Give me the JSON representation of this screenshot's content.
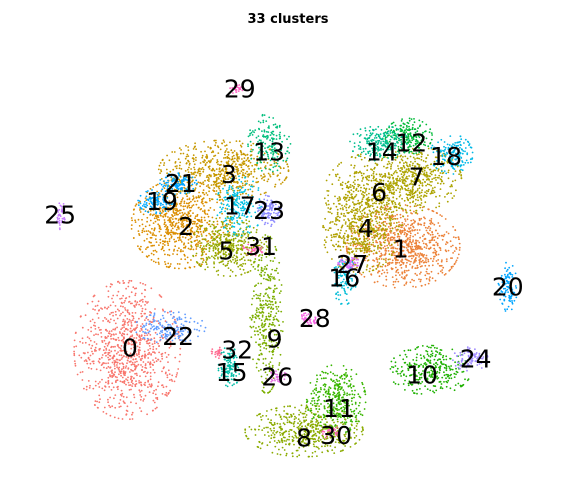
{
  "chart_data": {
    "type": "scatter",
    "title": "33 clusters",
    "xlabel": "",
    "ylabel": "",
    "grid": false,
    "legend": "none",
    "xlim": [
      0,
      100
    ],
    "ylim": [
      0,
      100
    ],
    "palette": {
      "0": "#F8766D",
      "1": "#EC8239",
      "2": "#DB8E00",
      "3": "#C79800",
      "4": "#B0A100",
      "5": "#96A900",
      "6": "#AEA200",
      "7": "#ADA400",
      "8": "#8BAB00",
      "9": "#7CAE00",
      "10": "#1EB100",
      "11": "#39B600",
      "12": "#00BA38",
      "13": "#00BF7D",
      "14": "#00BF8F",
      "15": "#00BFA8",
      "16": "#00BCD6",
      "17": "#00C1E2",
      "18": "#00B8E7",
      "19": "#00A9FF",
      "20": "#00A5FF",
      "21": "#00A5FF",
      "22": "#619CFF",
      "23": "#8E8BFF",
      "24": "#9E88FF",
      "25": "#C77CFF",
      "26": "#E26FE0",
      "27": "#D874FD",
      "28": "#F564E3",
      "29": "#FF61C3",
      "30": "#FF62BC",
      "31": "#FF63B6",
      "32": "#FF6C91"
    },
    "clusters": [
      {
        "id": "0",
        "label": "0",
        "x": 20.0,
        "y": 70.0,
        "sx": 4.5,
        "sy": 7.0,
        "n": 900
      },
      {
        "id": "1",
        "label": "1",
        "x": 71.5,
        "y": 47.0,
        "sx": 4.8,
        "sy": 4.2,
        "n": 800
      },
      {
        "id": "2",
        "label": "2",
        "x": 30.0,
        "y": 42.0,
        "sx": 4.2,
        "sy": 4.5,
        "n": 700
      },
      {
        "id": "3",
        "label": "3",
        "x": 38.0,
        "y": 30.0,
        "sx": 5.5,
        "sy": 3.0,
        "n": 600
      },
      {
        "id": "4",
        "label": "4",
        "x": 63.5,
        "y": 44.0,
        "sx": 3.2,
        "sy": 4.0,
        "n": 450
      },
      {
        "id": "5",
        "label": "5",
        "x": 39.0,
        "y": 47.0,
        "sx": 3.2,
        "sy": 3.0,
        "n": 400
      },
      {
        "id": "6",
        "label": "6",
        "x": 66.0,
        "y": 35.0,
        "sx": 4.2,
        "sy": 4.0,
        "n": 450
      },
      {
        "id": "7",
        "label": "7",
        "x": 74.0,
        "y": 32.0,
        "sx": 3.8,
        "sy": 3.2,
        "n": 450
      },
      {
        "id": "8",
        "label": "8",
        "x": 53.0,
        "y": 88.0,
        "sx": 5.0,
        "sy": 2.6,
        "n": 500
      },
      {
        "id": "9",
        "label": "9",
        "x": 46.0,
        "y": 62.0,
        "sx": 1.4,
        "sy": 8.0,
        "n": 350
      },
      {
        "id": "10",
        "label": "10",
        "x": 76.5,
        "y": 74.5,
        "sx": 3.5,
        "sy": 2.5,
        "n": 300
      },
      {
        "id": "11",
        "label": "11",
        "x": 59.0,
        "y": 81.0,
        "sx": 2.5,
        "sy": 3.5,
        "n": 350
      },
      {
        "id": "12",
        "label": "12",
        "x": 72.5,
        "y": 22.5,
        "sx": 2.0,
        "sy": 1.8,
        "n": 200
      },
      {
        "id": "13",
        "label": "13",
        "x": 46.5,
        "y": 24.0,
        "sx": 1.8,
        "sy": 3.0,
        "n": 160
      },
      {
        "id": "14",
        "label": "14",
        "x": 67.0,
        "y": 24.0,
        "sx": 2.5,
        "sy": 1.8,
        "n": 220
      },
      {
        "id": "15",
        "label": "15",
        "x": 39.0,
        "y": 74.0,
        "sx": 0.9,
        "sy": 2.2,
        "n": 120
      },
      {
        "id": "16",
        "label": "16",
        "x": 60.5,
        "y": 54.5,
        "sx": 1.0,
        "sy": 2.5,
        "n": 100
      },
      {
        "id": "17",
        "label": "17",
        "x": 41.0,
        "y": 38.0,
        "sx": 2.0,
        "sy": 3.0,
        "n": 200
      },
      {
        "id": "18",
        "label": "18",
        "x": 80.5,
        "y": 26.5,
        "sx": 1.8,
        "sy": 2.0,
        "n": 150
      },
      {
        "id": "19",
        "label": "19",
        "x": 25.5,
        "y": 37.0,
        "sx": 1.6,
        "sy": 1.2,
        "n": 110
      },
      {
        "id": "20",
        "label": "20",
        "x": 91.0,
        "y": 56.0,
        "sx": 0.8,
        "sy": 2.5,
        "n": 100
      },
      {
        "id": "21",
        "label": "21",
        "x": 29.5,
        "y": 33.0,
        "sx": 1.6,
        "sy": 1.1,
        "n": 110
      },
      {
        "id": "22",
        "label": "22",
        "x": 28.0,
        "y": 65.0,
        "sx": 3.0,
        "sy": 1.6,
        "n": 170
      },
      {
        "id": "23",
        "label": "23",
        "x": 46.5,
        "y": 39.0,
        "sx": 1.0,
        "sy": 1.6,
        "n": 110
      },
      {
        "id": "24",
        "label": "24",
        "x": 84.0,
        "y": 72.0,
        "sx": 1.5,
        "sy": 1.2,
        "n": 90
      },
      {
        "id": "25",
        "label": "25",
        "x": 7.5,
        "y": 40.0,
        "sx": 0.4,
        "sy": 1.6,
        "n": 40
      },
      {
        "id": "26",
        "label": "26",
        "x": 48.0,
        "y": 76.0,
        "sx": 0.9,
        "sy": 0.6,
        "n": 40
      },
      {
        "id": "27",
        "label": "27",
        "x": 61.5,
        "y": 51.0,
        "sx": 1.0,
        "sy": 0.7,
        "n": 60
      },
      {
        "id": "28",
        "label": "28",
        "x": 54.0,
        "y": 63.0,
        "sx": 0.8,
        "sy": 0.6,
        "n": 40
      },
      {
        "id": "29",
        "label": "29",
        "x": 40.5,
        "y": 12.0,
        "sx": 0.6,
        "sy": 0.5,
        "n": 25
      },
      {
        "id": "30",
        "label": "30",
        "x": 58.0,
        "y": 88.5,
        "sx": 0.9,
        "sy": 0.7,
        "n": 40
      },
      {
        "id": "31",
        "label": "31",
        "x": 43.5,
        "y": 47.5,
        "sx": 0.9,
        "sy": 0.7,
        "n": 40
      },
      {
        "id": "32",
        "label": "32",
        "x": 37.0,
        "y": 70.5,
        "sx": 0.6,
        "sy": 0.6,
        "n": 25
      }
    ],
    "labels": [
      {
        "text": "0",
        "x": 20.5,
        "y": 69.5
      },
      {
        "text": "1",
        "x": 71.0,
        "y": 47.5
      },
      {
        "text": "2",
        "x": 31.0,
        "y": 42.5
      },
      {
        "text": "3",
        "x": 39.0,
        "y": 31.0
      },
      {
        "text": "4",
        "x": 64.5,
        "y": 43.0
      },
      {
        "text": "5",
        "x": 38.5,
        "y": 48.0
      },
      {
        "text": "6",
        "x": 67.0,
        "y": 35.0
      },
      {
        "text": "7",
        "x": 74.0,
        "y": 31.5
      },
      {
        "text": "8",
        "x": 53.0,
        "y": 89.5
      },
      {
        "text": "9",
        "x": 47.5,
        "y": 67.5
      },
      {
        "text": "10",
        "x": 75.0,
        "y": 75.5
      },
      {
        "text": "11",
        "x": 59.5,
        "y": 83.0
      },
      {
        "text": "12",
        "x": 73.0,
        "y": 24.0
      },
      {
        "text": "13",
        "x": 46.5,
        "y": 26.0
      },
      {
        "text": "14",
        "x": 67.5,
        "y": 26.0
      },
      {
        "text": "15",
        "x": 39.5,
        "y": 75.0
      },
      {
        "text": "16",
        "x": 60.5,
        "y": 54.0
      },
      {
        "text": "17",
        "x": 41.0,
        "y": 38.0
      },
      {
        "text": "18",
        "x": 79.5,
        "y": 27.0
      },
      {
        "text": "19",
        "x": 26.5,
        "y": 37.0
      },
      {
        "text": "20",
        "x": 91.0,
        "y": 56.0
      },
      {
        "text": "21",
        "x": 30.0,
        "y": 33.0
      },
      {
        "text": "22",
        "x": 29.5,
        "y": 67.0
      },
      {
        "text": "23",
        "x": 46.5,
        "y": 39.0
      },
      {
        "text": "24",
        "x": 85.0,
        "y": 72.0
      },
      {
        "text": "25",
        "x": 7.5,
        "y": 40.0
      },
      {
        "text": "26",
        "x": 48.0,
        "y": 76.0
      },
      {
        "text": "27",
        "x": 62.0,
        "y": 51.0
      },
      {
        "text": "28",
        "x": 55.0,
        "y": 63.0
      },
      {
        "text": "29",
        "x": 41.0,
        "y": 12.0
      },
      {
        "text": "30",
        "x": 59.0,
        "y": 89.0
      },
      {
        "text": "31",
        "x": 45.0,
        "y": 47.0
      },
      {
        "text": "32",
        "x": 40.5,
        "y": 70.0
      }
    ]
  }
}
